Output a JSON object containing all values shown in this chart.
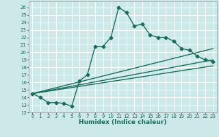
{
  "xlabel": "Humidex (Indice chaleur)",
  "bg_color": "#cce8e8",
  "line_color": "#1a6b5a",
  "grid_color": "#ffffff",
  "xlim": [
    -0.5,
    23.5
  ],
  "ylim": [
    12,
    26.8
  ],
  "yticks": [
    12,
    13,
    14,
    15,
    16,
    17,
    18,
    19,
    20,
    21,
    22,
    23,
    24,
    25,
    26
  ],
  "xticks": [
    0,
    1,
    2,
    3,
    4,
    5,
    6,
    7,
    8,
    9,
    10,
    11,
    12,
    13,
    14,
    15,
    16,
    17,
    18,
    19,
    20,
    21,
    22,
    23
  ],
  "line1_x": [
    0,
    1,
    2,
    3,
    4,
    5,
    6,
    7,
    8,
    9,
    10,
    11,
    12,
    13,
    14,
    15,
    16,
    17,
    18,
    19,
    20,
    21,
    22,
    23
  ],
  "line1_y": [
    14.5,
    14.0,
    13.3,
    13.3,
    13.2,
    12.8,
    16.2,
    17.0,
    20.8,
    20.8,
    22.0,
    26.0,
    25.3,
    23.5,
    23.8,
    22.3,
    22.0,
    22.0,
    21.5,
    20.5,
    20.3,
    19.5,
    19.0,
    18.8
  ],
  "line2_x": [
    0,
    23
  ],
  "line2_y": [
    14.5,
    20.5
  ],
  "line3_x": [
    0,
    23
  ],
  "line3_y": [
    14.5,
    19.0
  ],
  "line4_x": [
    0,
    23
  ],
  "line4_y": [
    14.5,
    18.2
  ],
  "markersize": 2.5,
  "linewidth": 1.0,
  "tick_fontsize": 5.0,
  "xlabel_fontsize": 6.5
}
